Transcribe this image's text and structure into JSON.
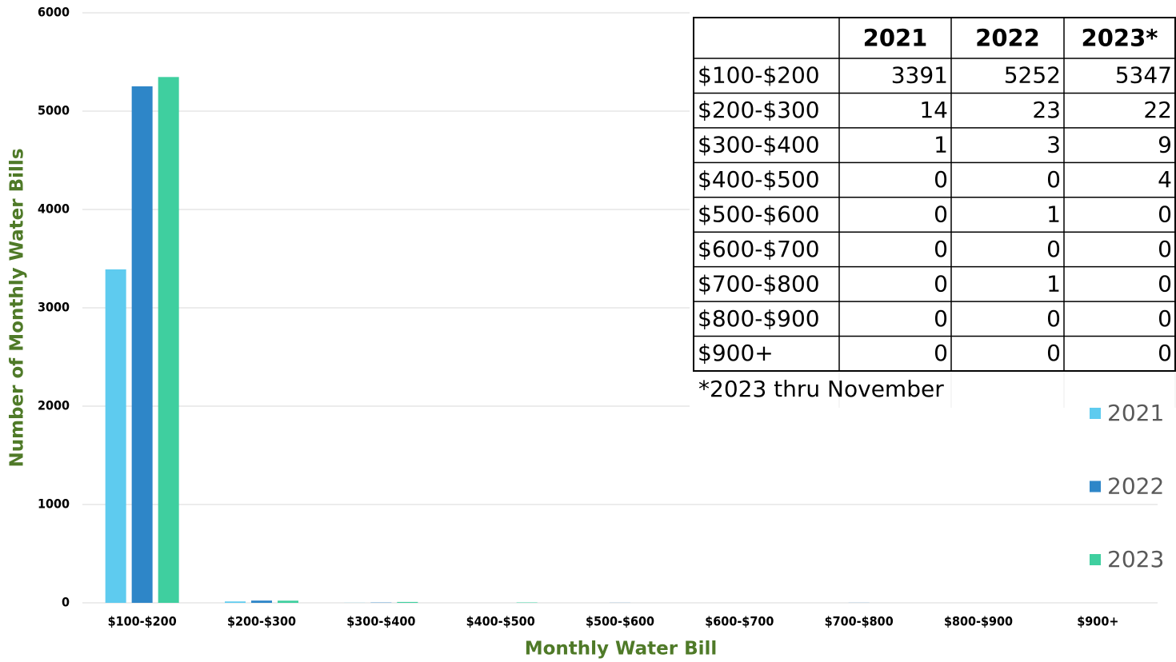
{
  "chart_data": {
    "type": "bar",
    "x_label": "Monthly Water Bill",
    "y_label": "Number of Monthly Water Bills",
    "categories": [
      "$100-$200",
      "$200-$300",
      "$300-$400",
      "$400-$500",
      "$500-$600",
      "$600-$700",
      "$700-$800",
      "$800-$900",
      "$900+"
    ],
    "series": [
      {
        "name": "2021",
        "color": "#5ecbef",
        "values": [
          3391,
          14,
          1,
          0,
          0,
          0,
          0,
          0,
          0
        ]
      },
      {
        "name": "2022",
        "color": "#2e86c8",
        "values": [
          5252,
          23,
          3,
          0,
          1,
          0,
          1,
          0,
          0
        ]
      },
      {
        "name": "2023",
        "color": "#3fcf9f",
        "values": [
          5347,
          22,
          9,
          4,
          0,
          0,
          0,
          0,
          0
        ]
      }
    ],
    "ylim": [
      0,
      6000
    ],
    "yticks": [
      0,
      1000,
      2000,
      3000,
      4000,
      5000,
      6000
    ],
    "grid": true,
    "legend": "right",
    "table": {
      "columns": [
        "2021",
        "2022",
        "2023*"
      ],
      "note": "*2023 thru November"
    }
  }
}
